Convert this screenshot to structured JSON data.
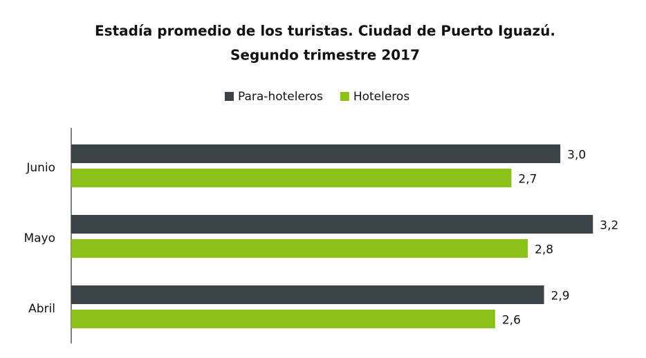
{
  "chart_data": {
    "type": "hbar",
    "title": [
      "Estadía promedio de los turistas. Ciudad de Puerto Iguazú.",
      "Segundo trimestre 2017"
    ],
    "categories": [
      "Abril",
      "Mayo",
      "Junio"
    ],
    "series": [
      {
        "name": "Para-hoteleros",
        "color": "#3b4447",
        "values": [
          2.9,
          3.2,
          3.0
        ],
        "value_labels": [
          "2,9",
          "3,2",
          "3,0"
        ]
      },
      {
        "name": "Hoteleros",
        "color": "#8cc11a",
        "values": [
          2.6,
          2.8,
          2.7
        ],
        "value_labels": [
          "2,6",
          "2,8",
          "2,7"
        ]
      }
    ],
    "xlim": [
      0,
      3.5
    ],
    "legend": "top"
  }
}
